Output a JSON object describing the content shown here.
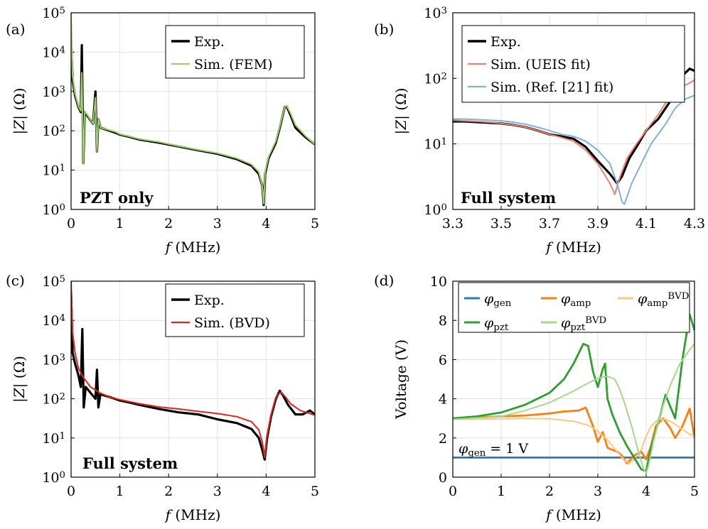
{
  "chart_data": [
    {
      "panel": "(a)",
      "type": "line",
      "xlabel": "f (MHz)",
      "ylabel": "|Z| (Ω)",
      "yscale": "log",
      "xlim": [
        0,
        5
      ],
      "ylim": [
        1,
        100000
      ],
      "xticks": [
        "0",
        "1",
        "2",
        "3",
        "4",
        "5"
      ],
      "yticks": [
        "10^0",
        "10^1",
        "10^2",
        "10^3",
        "10^4",
        "10^5"
      ],
      "annotation": "PZT only",
      "legend": "top-right",
      "grid": true,
      "series": [
        {
          "name": "Exp.",
          "color": "#000000",
          "x": [
            0,
            0.03,
            0.08,
            0.15,
            0.2,
            0.22,
            0.25,
            0.28,
            0.45,
            0.5,
            0.53,
            0.56,
            0.6,
            0.9,
            1.0,
            1.2,
            1.4,
            1.8,
            2.2,
            2.6,
            3.0,
            3.4,
            3.7,
            3.85,
            3.92,
            3.95,
            3.98,
            4.05,
            4.2,
            4.3,
            4.38,
            4.42,
            4.5,
            4.6,
            4.8,
            5.0
          ],
          "y": [
            20000,
            2000,
            800,
            400,
            300,
            15000,
            15,
            300,
            150,
            1000,
            30,
            200,
            120,
            90,
            80,
            70,
            60,
            50,
            40,
            32,
            26,
            19,
            13,
            8,
            4,
            1.3,
            8,
            20,
            50,
            150,
            400,
            420,
            250,
            120,
            70,
            45
          ]
        },
        {
          "name": "Sim. (FEM)",
          "color": "#9dd06b",
          "x": [
            0,
            0.03,
            0.08,
            0.15,
            0.2,
            0.22,
            0.25,
            0.28,
            0.45,
            0.5,
            0.53,
            0.56,
            0.6,
            0.9,
            1.0,
            1.2,
            1.4,
            1.8,
            2.2,
            2.6,
            3.0,
            3.4,
            3.7,
            3.85,
            3.92,
            3.95,
            3.98,
            4.05,
            4.2,
            4.3,
            4.38,
            4.42,
            4.5,
            4.6,
            4.8,
            5.0
          ],
          "y": [
            100000,
            2500,
            900,
            420,
            320,
            3000,
            14,
            320,
            150,
            700,
            30,
            210,
            120,
            95,
            82,
            72,
            62,
            52,
            41,
            33,
            27,
            20,
            14,
            9,
            4,
            1.4,
            9,
            22,
            55,
            160,
            400,
            440,
            280,
            140,
            75,
            45
          ]
        }
      ]
    },
    {
      "panel": "(b)",
      "type": "line",
      "xlabel": "f (MHz)",
      "ylabel": "|Z| (Ω)",
      "yscale": "log",
      "xlim": [
        3.3,
        4.3
      ],
      "ylim": [
        1,
        1000
      ],
      "xticks": [
        "3.3",
        "3.5",
        "3.7",
        "3.9",
        "4.1",
        "4.3"
      ],
      "yticks": [
        "10^0",
        "10^1",
        "10^2",
        "10^3"
      ],
      "annotation": "Full system",
      "legend": "top-right",
      "grid": true,
      "series": [
        {
          "name": "Exp.",
          "color": "#000000",
          "x": [
            3.3,
            3.35,
            3.4,
            3.45,
            3.5,
            3.55,
            3.6,
            3.65,
            3.7,
            3.75,
            3.8,
            3.85,
            3.9,
            3.95,
            3.98,
            4.0,
            4.03,
            4.06,
            4.1,
            4.15,
            4.2,
            4.25,
            4.28,
            4.3
          ],
          "y": [
            22,
            22,
            21.5,
            21,
            20.5,
            19.5,
            18,
            16,
            14,
            13,
            12,
            9,
            5.5,
            3.5,
            2.5,
            3.2,
            6,
            9,
            16,
            24,
            45,
            110,
            140,
            130
          ]
        },
        {
          "name": "Sim. (UEIS fit)",
          "color": "#f08070",
          "x": [
            3.3,
            3.35,
            3.4,
            3.45,
            3.5,
            3.55,
            3.6,
            3.65,
            3.7,
            3.75,
            3.8,
            3.85,
            3.9,
            3.95,
            3.97,
            3.99,
            4.02,
            4.06,
            4.1,
            4.15,
            4.2,
            4.25,
            4.28,
            4.3
          ],
          "y": [
            23,
            22.5,
            22,
            21.5,
            20.5,
            19.5,
            18,
            16,
            14,
            12.5,
            11,
            8,
            5,
            2.5,
            1.7,
            3,
            6,
            10,
            16,
            28,
            55,
            75,
            85,
            95
          ]
        },
        {
          "name": "Sim. (Ref. [21] fit)",
          "color": "#7fb2d6",
          "x": [
            3.3,
            3.35,
            3.4,
            3.45,
            3.5,
            3.55,
            3.6,
            3.65,
            3.7,
            3.75,
            3.8,
            3.85,
            3.9,
            3.95,
            3.98,
            4.0,
            4.01,
            4.04,
            4.08,
            4.12,
            4.18,
            4.22,
            4.26,
            4.3
          ],
          "y": [
            24,
            24,
            23.5,
            23,
            22.5,
            21.5,
            20,
            18,
            16,
            14,
            13,
            11,
            8,
            5,
            2.5,
            1.3,
            1.2,
            2.5,
            5,
            10,
            20,
            35,
            48,
            55
          ]
        }
      ]
    },
    {
      "panel": "(c)",
      "type": "line",
      "xlabel": "f (MHz)",
      "ylabel": "|Z| (Ω)",
      "yscale": "log",
      "xlim": [
        0,
        5
      ],
      "ylim": [
        1,
        100000
      ],
      "xticks": [
        "0",
        "1",
        "2",
        "3",
        "4",
        "5"
      ],
      "yticks": [
        "10^0",
        "10^1",
        "10^2",
        "10^3",
        "10^4",
        "10^5"
      ],
      "annotation": "Full system",
      "legend": "top-right",
      "grid": true,
      "series": [
        {
          "name": "Exp.",
          "color": "#000000",
          "x": [
            0,
            0.03,
            0.08,
            0.15,
            0.2,
            0.23,
            0.26,
            0.3,
            0.5,
            0.53,
            0.56,
            0.6,
            0.8,
            1.0,
            1.2,
            1.4,
            1.8,
            2.2,
            2.6,
            3.0,
            3.4,
            3.7,
            3.85,
            3.92,
            3.97,
            4.02,
            4.1,
            4.2,
            4.28,
            4.35,
            4.45,
            4.6,
            4.75,
            4.9,
            5.0
          ],
          "y": [
            50000,
            1500,
            800,
            400,
            200,
            6000,
            60,
            200,
            100,
            550,
            60,
            130,
            110,
            90,
            80,
            70,
            55,
            45,
            40,
            30,
            24,
            17,
            10,
            5,
            2.8,
            10,
            35,
            100,
            160,
            120,
            70,
            40,
            40,
            50,
            40
          ]
        },
        {
          "name": "Sim. (BVD)",
          "color": "#e0251e",
          "x": [
            0,
            0.03,
            0.08,
            0.15,
            0.25,
            0.4,
            0.6,
            0.8,
            1.0,
            1.4,
            1.8,
            2.2,
            2.6,
            3.0,
            3.4,
            3.7,
            3.85,
            3.92,
            3.97,
            4.02,
            4.1,
            4.2,
            4.3,
            4.4,
            4.5,
            4.7,
            4.9,
            5.0
          ],
          "y": [
            100000,
            5000,
            1500,
            600,
            350,
            200,
            140,
            110,
            95,
            75,
            62,
            55,
            48,
            42,
            35,
            26,
            16,
            8,
            3.2,
            12,
            40,
            110,
            150,
            110,
            75,
            50,
            42,
            38
          ]
        }
      ]
    },
    {
      "panel": "(d)",
      "type": "line",
      "xlabel": "f (MHz)",
      "ylabel": "Voltage (V)",
      "xlim": [
        0,
        5
      ],
      "ylim": [
        0,
        10
      ],
      "xticks": [
        "0",
        "1",
        "2",
        "3",
        "4",
        "5"
      ],
      "yticks": [
        "0",
        "2",
        "4",
        "6",
        "8",
        "10"
      ],
      "annotation": "φgen = 1 V",
      "legend": "top",
      "grid": true,
      "series": [
        {
          "name": "φgen",
          "color": "#2c7bb6",
          "x": [
            0,
            5
          ],
          "y": [
            1,
            1
          ]
        },
        {
          "name": "φamp",
          "color": "#ff7f0e",
          "x": [
            0,
            0.5,
            1.0,
            1.5,
            2.0,
            2.3,
            2.6,
            2.75,
            2.9,
            3.0,
            3.1,
            3.2,
            3.3,
            3.4,
            3.5,
            3.6,
            3.75,
            3.9,
            4.0,
            4.1,
            4.2,
            4.35,
            4.5,
            4.6,
            4.75,
            4.9,
            5.0
          ],
          "y": [
            3.0,
            3.05,
            3.1,
            3.15,
            3.25,
            3.35,
            3.4,
            3.55,
            2.6,
            1.8,
            2.3,
            1.5,
            1.4,
            1.3,
            1.1,
            0.7,
            1.1,
            1.3,
            0.9,
            1.6,
            2.6,
            3.0,
            2.5,
            2.0,
            2.6,
            3.5,
            2.0
          ]
        },
        {
          "name": "φamp^BVD",
          "color": "#fdc785",
          "x": [
            0,
            1.0,
            1.5,
            2.0,
            2.5,
            2.8,
            3.0,
            3.2,
            3.4,
            3.55,
            3.65,
            3.75,
            3.9,
            4.0,
            4.1,
            4.2,
            4.3,
            4.4,
            4.5,
            4.6,
            4.8,
            5.0
          ],
          "y": [
            2.95,
            2.98,
            3.0,
            2.98,
            2.85,
            2.65,
            2.35,
            1.9,
            1.3,
            0.85,
            0.7,
            0.9,
            1.4,
            2.1,
            2.6,
            2.85,
            2.95,
            2.95,
            2.85,
            2.7,
            2.35,
            2.05
          ]
        },
        {
          "name": "φpzt",
          "color": "#2ca02c",
          "x": [
            0,
            0.5,
            1.0,
            1.5,
            2.0,
            2.3,
            2.5,
            2.7,
            2.8,
            2.9,
            3.0,
            3.1,
            3.15,
            3.2,
            3.3,
            3.45,
            3.6,
            3.75,
            3.9,
            4.0,
            4.1,
            4.25,
            4.4,
            4.6,
            4.75,
            4.9,
            5.0
          ],
          "y": [
            3.0,
            3.1,
            3.3,
            3.7,
            4.3,
            5.0,
            5.8,
            6.8,
            6.7,
            5.4,
            4.6,
            5.5,
            5.8,
            4.0,
            3.2,
            2.3,
            1.6,
            1.0,
            0.4,
            0.3,
            1.5,
            2.8,
            4.2,
            3.0,
            6.0,
            8.3,
            7.5
          ]
        },
        {
          "name": "φpzt^BVD",
          "color": "#a5d88a",
          "x": [
            0,
            1.0,
            1.5,
            2.0,
            2.5,
            2.8,
            3.0,
            3.2,
            3.35,
            3.45,
            3.55,
            3.7,
            3.85,
            3.95,
            4.0,
            4.05,
            4.15,
            4.3,
            4.5,
            4.7,
            4.9,
            5.0
          ],
          "y": [
            2.95,
            3.1,
            3.4,
            3.8,
            4.4,
            4.8,
            5.05,
            5.15,
            5.0,
            4.5,
            3.8,
            2.6,
            1.2,
            0.4,
            0.2,
            0.6,
            1.8,
            3.3,
            4.7,
            5.8,
            6.5,
            6.8
          ]
        }
      ]
    }
  ]
}
